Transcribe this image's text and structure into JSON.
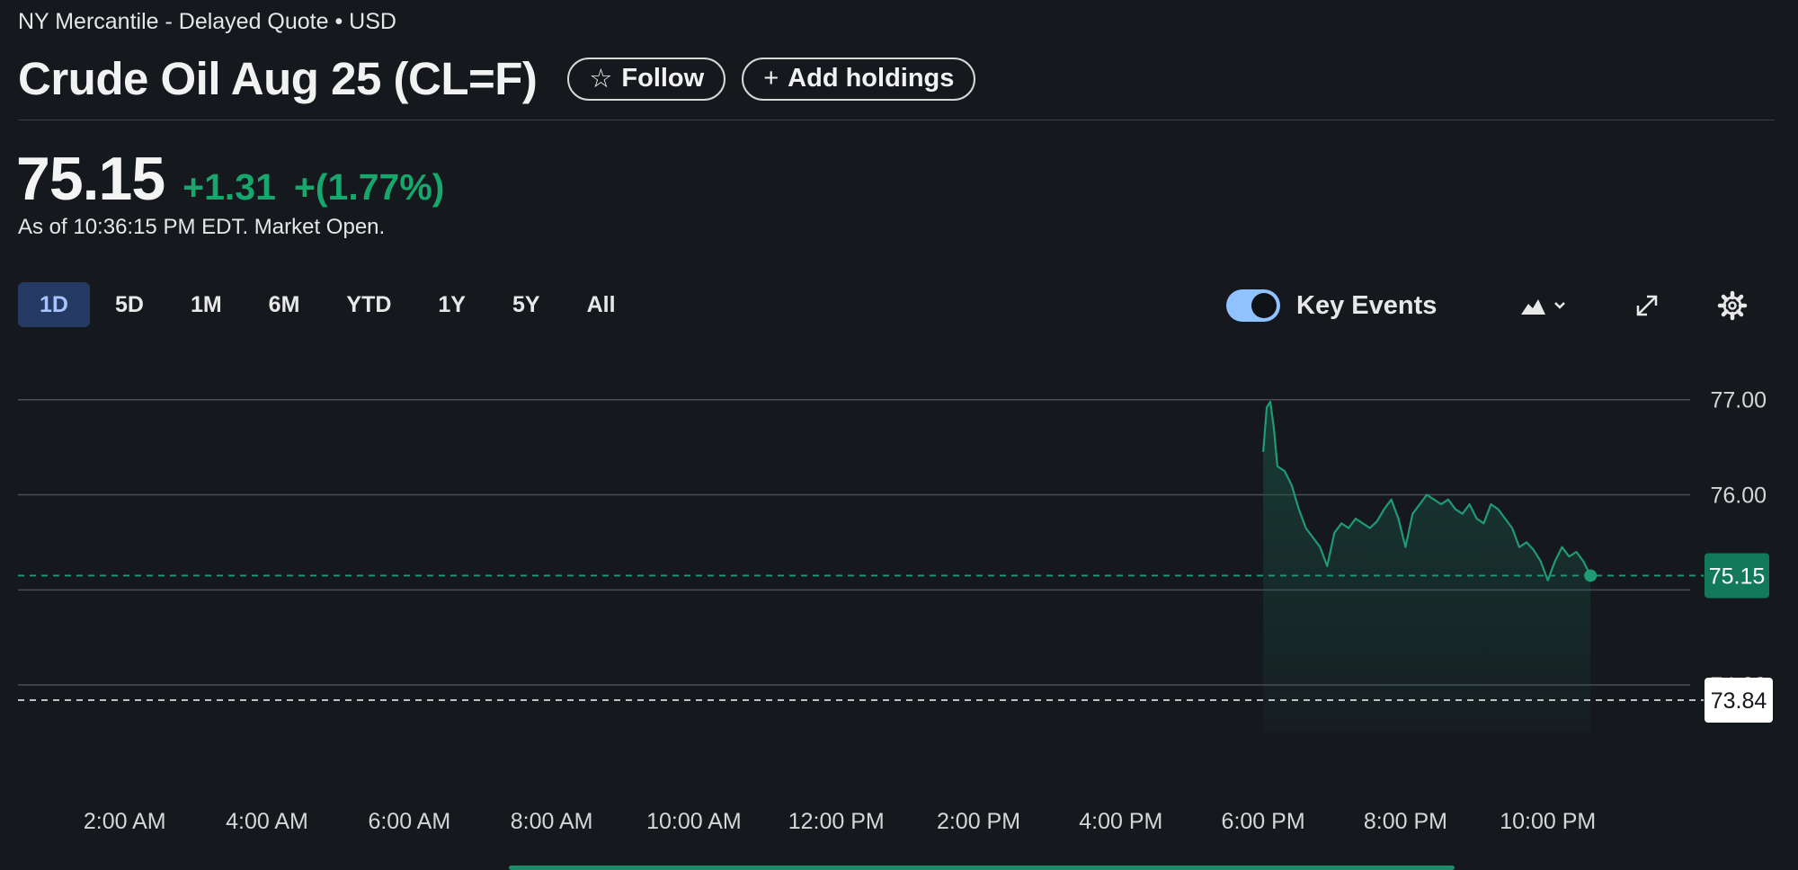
{
  "header": {
    "exchange": "NY Mercantile - Delayed Quote • USD",
    "title": "Crude Oil Aug 25 (CL=F)",
    "follow_label": "Follow",
    "add_holdings_label": "Add holdings"
  },
  "quote": {
    "price": "75.15",
    "change": "+1.31",
    "change_pct": "+(1.77%)",
    "as_of": "As of 10:36:15 PM EDT. Market Open."
  },
  "ranges": [
    {
      "label": "1D",
      "active": true
    },
    {
      "label": "5D",
      "active": false
    },
    {
      "label": "1M",
      "active": false
    },
    {
      "label": "6M",
      "active": false
    },
    {
      "label": "YTD",
      "active": false
    },
    {
      "label": "1Y",
      "active": false
    },
    {
      "label": "5Y",
      "active": false
    },
    {
      "label": "All",
      "active": false
    }
  ],
  "controls": {
    "key_events_label": "Key Events",
    "key_events_on": true,
    "chart_type_icon": "mountain-chart-icon",
    "expand_icon": "expand-icon",
    "settings_icon": "gear-icon"
  },
  "colors": {
    "accent_green": "#17a66b",
    "active_range_bg": "#243a63",
    "toggle_on": "#8fc2ff"
  },
  "chart_data": {
    "type": "area",
    "y_ticks": [
      "77.00",
      "76.00",
      "74.00"
    ],
    "x_ticks": [
      "2:00 AM",
      "4:00 AM",
      "6:00 AM",
      "8:00 AM",
      "10:00 AM",
      "12:00 PM",
      "2:00 PM",
      "4:00 PM",
      "6:00 PM",
      "8:00 PM",
      "10:00 PM"
    ],
    "ylim": [
      73.5,
      77.3
    ],
    "current_price_label": "75.15",
    "current_price": 75.15,
    "previous_close_label": "73.84",
    "previous_close": 73.84,
    "series": [
      {
        "x_hours": [
          18.0,
          18.05,
          18.1,
          18.15,
          18.2,
          18.3,
          18.4,
          18.5,
          18.6,
          18.7,
          18.8,
          18.9,
          19.0,
          19.1,
          19.2,
          19.3,
          19.4,
          19.5,
          19.6,
          19.7,
          19.8,
          19.9,
          20.0,
          20.1,
          20.2,
          20.3,
          20.4,
          20.5,
          20.6,
          20.7,
          20.8,
          20.9,
          21.0,
          21.1,
          21.2,
          21.3,
          21.4,
          21.5,
          21.6,
          21.7,
          21.8,
          21.9,
          22.0,
          22.1,
          22.2,
          22.3,
          22.4,
          22.5,
          22.6
        ],
        "values": [
          76.45,
          76.92,
          76.98,
          76.7,
          76.3,
          76.25,
          76.1,
          75.85,
          75.65,
          75.55,
          75.45,
          75.25,
          75.6,
          75.7,
          75.65,
          75.75,
          75.7,
          75.65,
          75.72,
          75.85,
          75.95,
          75.75,
          75.45,
          75.8,
          75.9,
          76.0,
          75.95,
          75.9,
          75.95,
          75.85,
          75.8,
          75.9,
          75.75,
          75.7,
          75.9,
          75.85,
          75.75,
          75.65,
          75.45,
          75.5,
          75.42,
          75.3,
          75.1,
          75.3,
          75.45,
          75.35,
          75.4,
          75.3,
          75.15
        ]
      }
    ]
  }
}
